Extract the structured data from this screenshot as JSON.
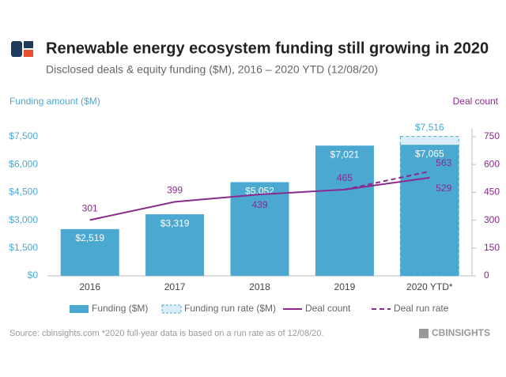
{
  "chart_data": {
    "type": "bar",
    "title": "Renewable energy ecosystem funding still growing in 2020",
    "subtitle": "Disclosed deals & equity funding ($M), 2016 – 2020 YTD (12/08/20)",
    "y_label": "Funding amount ($M)",
    "y2_label": "Deal count",
    "source": "Source: cbinsights.com  *2020 full-year data is based on a run rate as of 12/08/20.",
    "logo": "CBINSIGHTS",
    "categories": [
      "2016",
      "2017",
      "2018",
      "2019",
      "2020 YTD*"
    ],
    "series": [
      {
        "name": "Funding ($M)",
        "type": "bar",
        "color": "#4ba8d0",
        "values": [
          2519,
          3319,
          5052,
          7021,
          7065
        ],
        "value_labels": [
          "$2,519",
          "$3,319",
          "$5,052",
          "$7,021",
          "$7,065"
        ]
      },
      {
        "name": "Funding run rate ($M)",
        "type": "bar",
        "color": "#4ba8d0",
        "dashed": true,
        "values": [
          null,
          null,
          null,
          null,
          7516
        ],
        "value_labels": [
          null,
          null,
          null,
          null,
          "$7,516"
        ]
      },
      {
        "name": "Deal count",
        "type": "line",
        "axis": "y2",
        "color": "#8b2a8b",
        "values": [
          301,
          399,
          439,
          465,
          529
        ]
      },
      {
        "name": "Deal run rate",
        "type": "line",
        "axis": "y2",
        "color": "#8b2a8b",
        "dashed": true,
        "values": [
          null,
          null,
          null,
          465,
          563
        ],
        "value_labels": [
          null,
          null,
          null,
          null,
          "563"
        ]
      }
    ],
    "ylim": [
      0,
      7500
    ],
    "yticks": [
      {
        "value": 0,
        "label": "$0"
      },
      {
        "value": 1500,
        "label": "$1,500"
      },
      {
        "value": 3000,
        "label": "$3,000"
      },
      {
        "value": 4500,
        "label": "$4,500"
      },
      {
        "value": 6000,
        "label": "$6,000"
      },
      {
        "value": 7500,
        "label": "$7,500"
      }
    ],
    "y2lim": [
      0,
      750
    ],
    "y2ticks": [
      0,
      150,
      300,
      450,
      600,
      750
    ]
  }
}
